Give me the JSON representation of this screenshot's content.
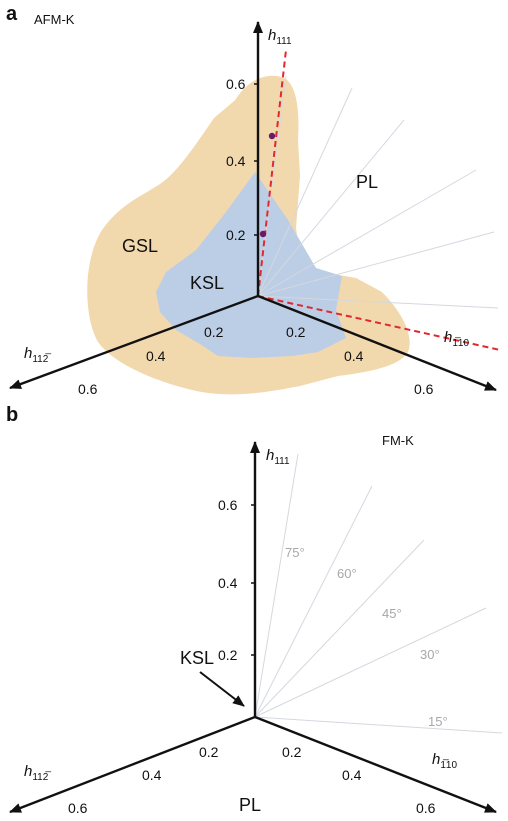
{
  "panels": [
    {
      "letter": "a",
      "model": "AFM-K",
      "regions": [
        "GSL",
        "KSL",
        "PL"
      ],
      "axes": {
        "vertical": {
          "symbol": "h",
          "subscript": "111",
          "ticks": [
            "0.2",
            "0.4",
            "0.6"
          ]
        },
        "left": {
          "symbol": "h",
          "subscript": "112̅",
          "ticks": [
            "0.2",
            "0.4",
            "0.6"
          ]
        },
        "right": {
          "symbol": "h",
          "subscript": "1̅10",
          "ticks": [
            "0.2",
            "0.4",
            "0.6"
          ]
        }
      }
    },
    {
      "letter": "b",
      "model": "FM-K",
      "regions": [
        "KSL",
        "PL"
      ],
      "angles": [
        "75°",
        "60°",
        "45°",
        "30°",
        "15°"
      ],
      "axes": {
        "vertical": {
          "symbol": "h",
          "subscript": "111",
          "ticks": [
            "0.2",
            "0.4",
            "0.6"
          ]
        },
        "left": {
          "symbol": "h",
          "subscript": "112̅",
          "ticks": [
            "0.2",
            "0.4",
            "0.6"
          ]
        },
        "right": {
          "symbol": "h",
          "subscript": "1̅10",
          "ticks": [
            "0.2",
            "0.4",
            "0.6"
          ]
        }
      }
    }
  ],
  "colors": {
    "gsl_region": "#f2d9ad",
    "ksl_region": "#bccde6",
    "axis": "#111111",
    "guide_lines": "#d4d8df",
    "dashed_line": "#e0282f",
    "points": "#6b1a6b",
    "angle_labels": "#a8a8a8"
  }
}
